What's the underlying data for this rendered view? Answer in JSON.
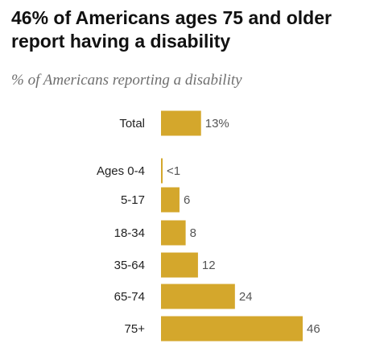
{
  "title": "46% of Americans ages 75 and older report having a disability",
  "subtitle": "% of Americans reporting a disability",
  "colors": {
    "bar": "#D4A72C"
  },
  "chart_data": {
    "type": "bar",
    "orientation": "horizontal",
    "categories": [
      "Total",
      "Ages 0-4",
      "5-17",
      "18-34",
      "35-64",
      "65-74",
      "75+"
    ],
    "values": [
      13,
      0.5,
      6,
      8,
      12,
      24,
      46
    ],
    "value_labels": [
      "13%",
      "<1",
      "6",
      "8",
      "12",
      "24",
      "46"
    ],
    "xlim": [
      0,
      46
    ],
    "grid": false
  }
}
